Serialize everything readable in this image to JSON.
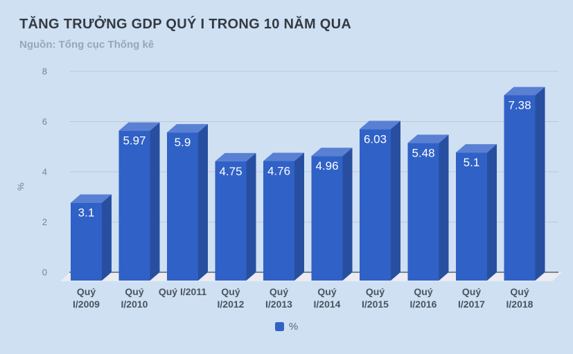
{
  "chart_data": {
    "type": "bar",
    "title": "TĂNG TRƯỞNG GDP QUÝ I TRONG 10 NĂM QUA",
    "source": "Nguồn: Tổng cục Thống kê",
    "categories": [
      "Quý I/2009",
      "Quý I/2010",
      "Quý I/2011",
      "Quý I/2012",
      "Quý I/2013",
      "Quý I/2014",
      "Quý I/2015",
      "Quý I/2016",
      "Quý I/2017",
      "Quý I/2018"
    ],
    "values": [
      3.1,
      5.97,
      5.9,
      4.75,
      4.76,
      4.96,
      6.03,
      5.48,
      5.1,
      7.38
    ],
    "value_labels": [
      "3.1",
      "5.97",
      "5.9",
      "4.75",
      "4.76",
      "4.96",
      "6.03",
      "5.48",
      "5.1",
      "7.38"
    ],
    "xlabel": "",
    "ylabel": "%",
    "yticks": [
      0,
      2,
      4,
      6,
      8
    ],
    "ylim": [
      0,
      8
    ],
    "grid": true,
    "style_3d": true,
    "legend": {
      "label": "%",
      "position": "bottom"
    }
  },
  "colors": {
    "page_bg": "#cfe0f3",
    "bar_front": "#3061c6",
    "bar_top": "#5a80d4",
    "bar_side": "#284f9f",
    "floor": "#eaecf2",
    "grid": "#bac7d8",
    "axis_line": "#3e4a55",
    "title": "#333a42",
    "subtitle": "#98a6b5",
    "tick": "#76828f",
    "xlabel": "#49545e",
    "value_label": "#ffffff",
    "legend_label": "#5c6670"
  }
}
